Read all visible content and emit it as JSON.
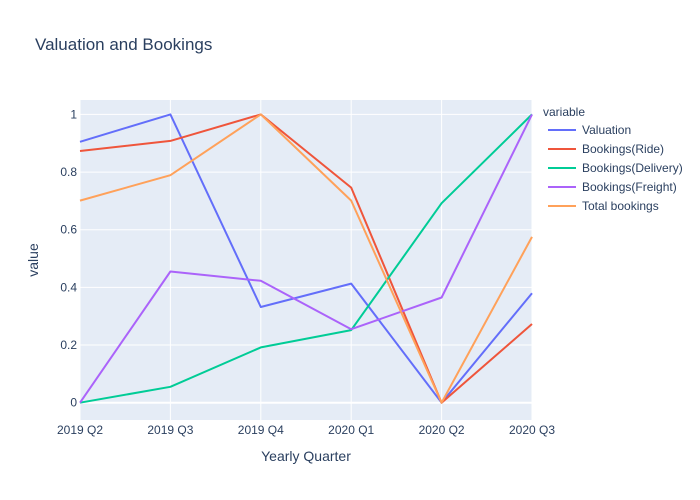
{
  "chart_data": {
    "type": "line",
    "title": "Valuation and Bookings",
    "xlabel": "Yearly Quarter",
    "ylabel": "value",
    "categories": [
      "2019 Q2",
      "2019 Q3",
      "2019 Q4",
      "2020 Q1",
      "2020 Q2",
      "2020 Q3"
    ],
    "ylim": [
      -0.06,
      1.05
    ],
    "yticks": [
      0,
      0.2,
      0.4,
      0.6,
      0.8,
      1
    ],
    "yticklabels": [
      "0",
      "0.2",
      "0.4",
      "0.6",
      "0.8",
      "1"
    ],
    "grid": true,
    "legend": {
      "title": "variable",
      "placement": "right"
    },
    "series": [
      {
        "name": "Valuation",
        "color": "#636efa",
        "values": [
          0.905,
          1.0,
          0.332,
          0.413,
          0.0,
          0.38
        ]
      },
      {
        "name": "Bookings(Ride)",
        "color": "#ef553b",
        "values": [
          0.873,
          0.908,
          1.0,
          0.746,
          0.0,
          0.273
        ]
      },
      {
        "name": "Bookings(Delivery)",
        "color": "#00cc96",
        "values": [
          0.0,
          0.055,
          0.192,
          0.252,
          0.692,
          1.0
        ]
      },
      {
        "name": "Bookings(Freight)",
        "color": "#ab63fa",
        "values": [
          0.0,
          0.455,
          0.423,
          0.255,
          0.365,
          1.0
        ]
      },
      {
        "name": "Total bookings",
        "color": "#ffa15a",
        "values": [
          0.701,
          0.789,
          1.0,
          0.701,
          0.0,
          0.575
        ]
      }
    ]
  }
}
